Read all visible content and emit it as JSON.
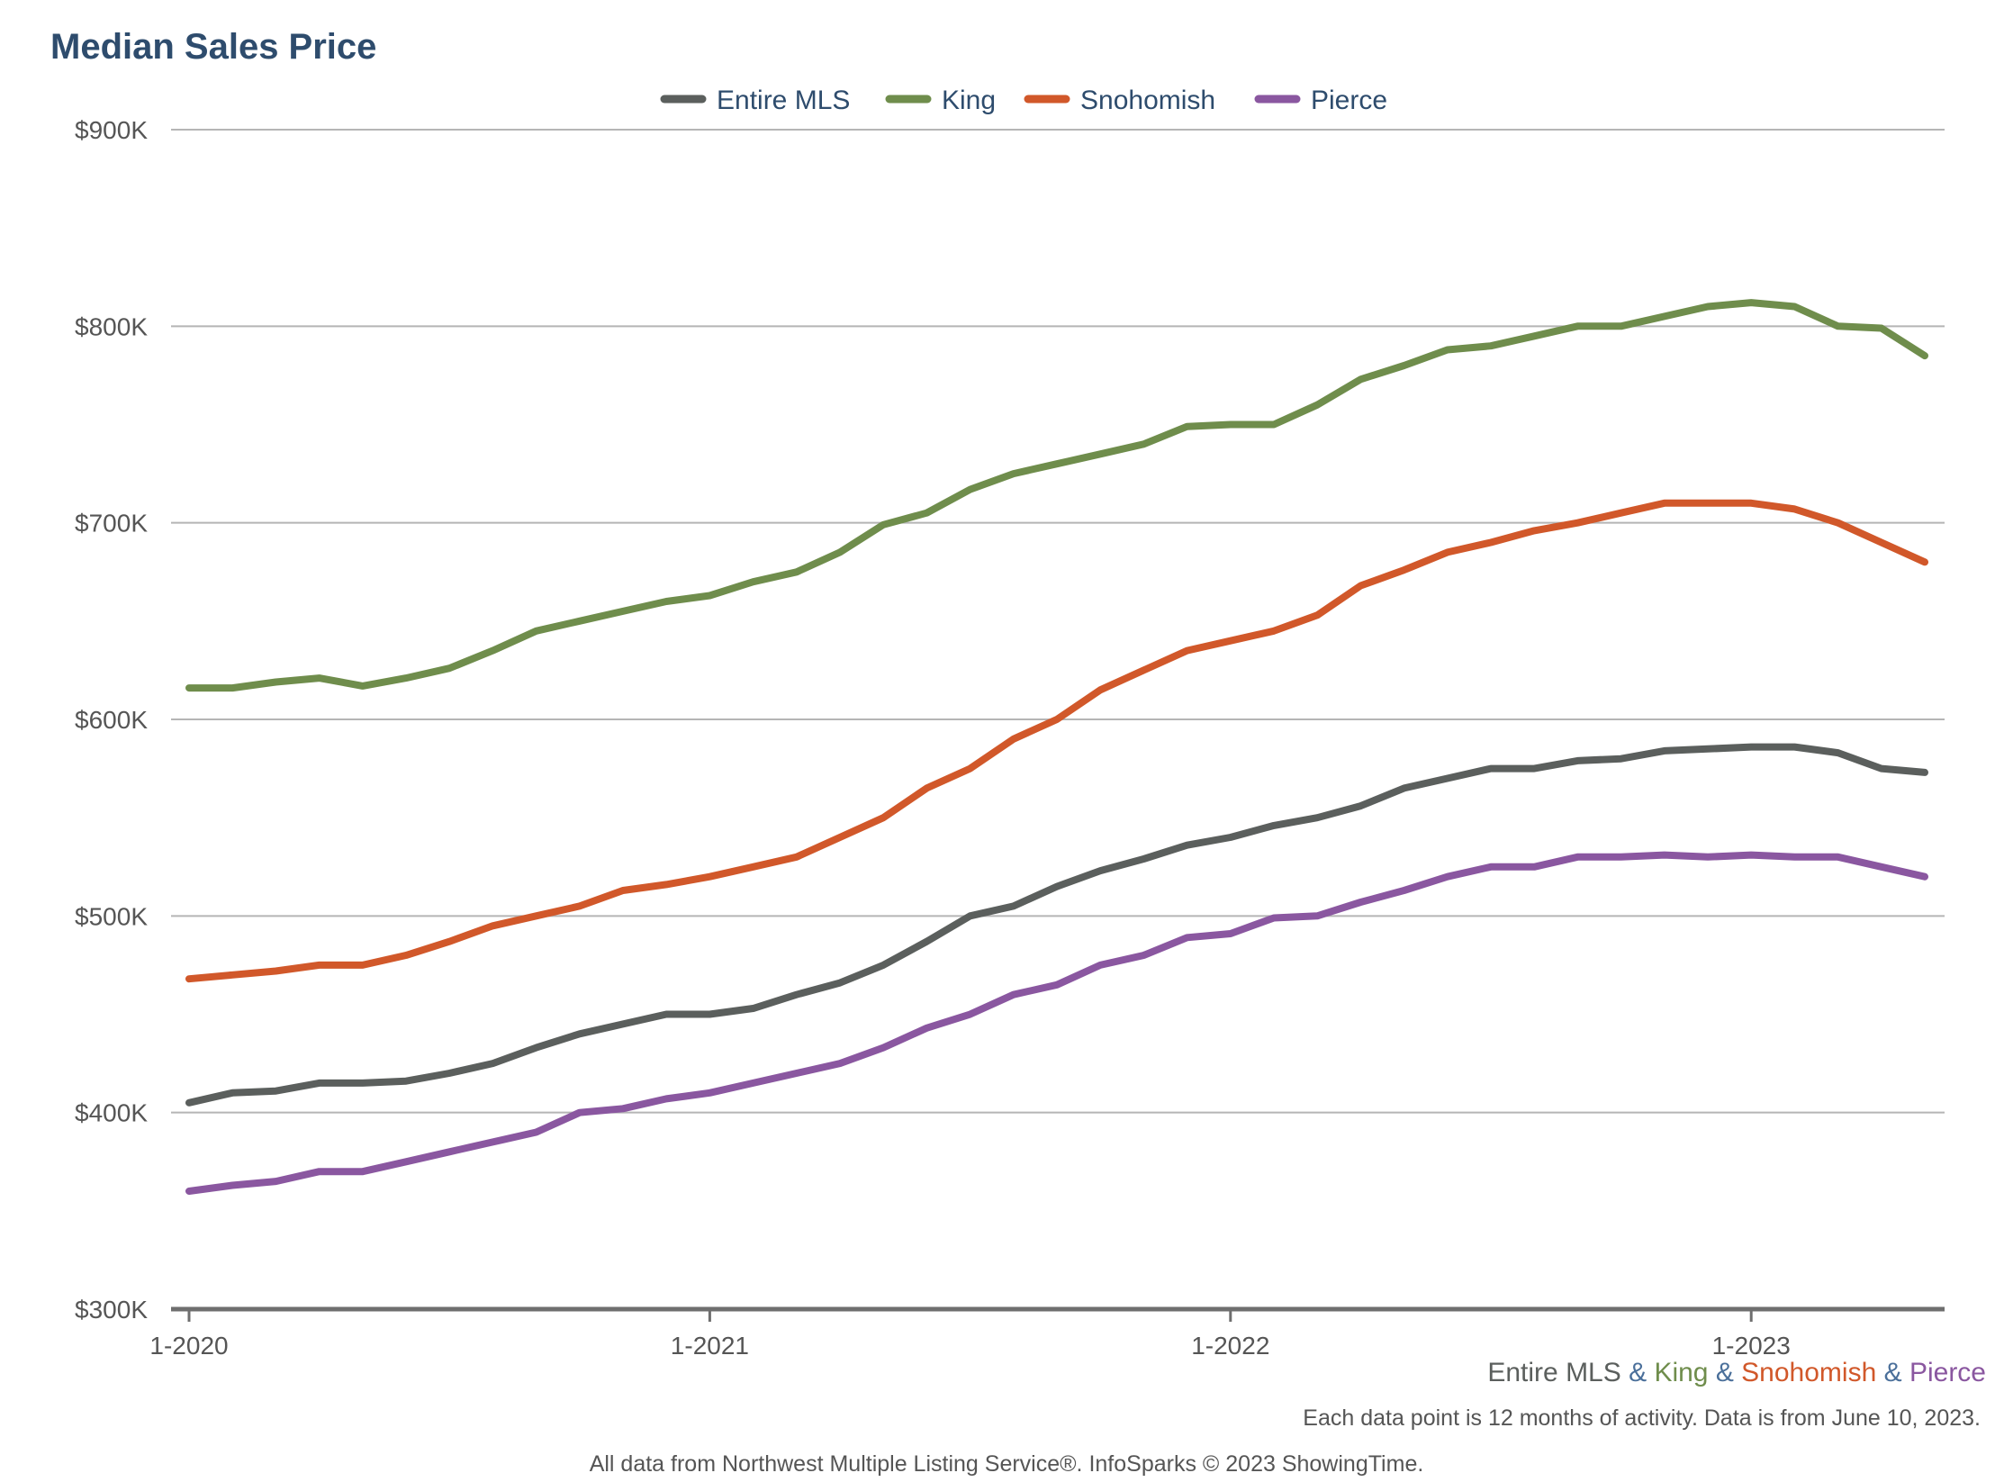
{
  "chart_data": {
    "type": "line",
    "title": "Median Sales Price",
    "xlabel": "",
    "ylabel": "",
    "ylim": [
      300000,
      900000
    ],
    "y_ticks": [
      {
        "value": 300000,
        "label": "$300K"
      },
      {
        "value": 400000,
        "label": "$400K"
      },
      {
        "value": 500000,
        "label": "$500K"
      },
      {
        "value": 600000,
        "label": "$600K"
      },
      {
        "value": 700000,
        "label": "$700K"
      },
      {
        "value": 800000,
        "label": "$800K"
      },
      {
        "value": 900000,
        "label": "$900K"
      }
    ],
    "x_ticks": [
      {
        "index": 0,
        "label": "1-2020"
      },
      {
        "index": 12,
        "label": "1-2021"
      },
      {
        "index": 24,
        "label": "1-2022"
      },
      {
        "index": 36,
        "label": "1-2023"
      }
    ],
    "x_count": 41,
    "x": [
      "1-2020",
      "2-2020",
      "3-2020",
      "4-2020",
      "5-2020",
      "6-2020",
      "7-2020",
      "8-2020",
      "9-2020",
      "10-2020",
      "11-2020",
      "12-2020",
      "1-2021",
      "2-2021",
      "3-2021",
      "4-2021",
      "5-2021",
      "6-2021",
      "7-2021",
      "8-2021",
      "9-2021",
      "10-2021",
      "11-2021",
      "12-2021",
      "1-2022",
      "2-2022",
      "3-2022",
      "4-2022",
      "5-2022",
      "6-2022",
      "7-2022",
      "8-2022",
      "9-2022",
      "10-2022",
      "11-2022",
      "12-2022",
      "1-2023",
      "2-2023",
      "3-2023",
      "4-2023",
      "5-2023"
    ],
    "grid": true,
    "legend_position": "top-center",
    "series": [
      {
        "name": "Entire MLS",
        "color": "#5b5f5d",
        "values": [
          405000,
          410000,
          411000,
          415000,
          415000,
          416000,
          420000,
          425000,
          433000,
          440000,
          445000,
          450000,
          450000,
          453000,
          460000,
          466000,
          475000,
          487000,
          500000,
          505000,
          515000,
          523000,
          529000,
          536000,
          540000,
          546000,
          550000,
          556000,
          565000,
          570000,
          575000,
          575000,
          579000,
          580000,
          584000,
          585000,
          586000,
          586000,
          583000,
          575000,
          573000
        ]
      },
      {
        "name": "King",
        "color": "#6f8d4c",
        "values": [
          616000,
          616000,
          619000,
          621000,
          617000,
          621000,
          626000,
          635000,
          645000,
          650000,
          655000,
          660000,
          663000,
          670000,
          675000,
          685000,
          699000,
          705000,
          717000,
          725000,
          730000,
          735000,
          740000,
          749000,
          750000,
          750000,
          760000,
          773000,
          780000,
          788000,
          790000,
          795000,
          800000,
          800000,
          805000,
          810000,
          812000,
          810000,
          800000,
          799000,
          785000
        ]
      },
      {
        "name": "Snohomish",
        "color": "#d1582a",
        "values": [
          468000,
          470000,
          472000,
          475000,
          475000,
          480000,
          487000,
          495000,
          500000,
          505000,
          513000,
          516000,
          520000,
          525000,
          530000,
          540000,
          550000,
          565000,
          575000,
          590000,
          600000,
          615000,
          625000,
          635000,
          640000,
          645000,
          653000,
          668000,
          676000,
          685000,
          690000,
          696000,
          700000,
          705000,
          710000,
          710000,
          710000,
          707000,
          700000,
          690000,
          680000
        ]
      },
      {
        "name": "Pierce",
        "color": "#8a57a0",
        "values": [
          360000,
          363000,
          365000,
          370000,
          370000,
          375000,
          380000,
          385000,
          390000,
          400000,
          402000,
          407000,
          410000,
          415000,
          420000,
          425000,
          433000,
          443000,
          450000,
          460000,
          465000,
          475000,
          480000,
          489000,
          491000,
          499000,
          500000,
          507000,
          513000,
          520000,
          525000,
          525000,
          530000,
          530000,
          531000,
          530000,
          531000,
          530000,
          530000,
          525000,
          520000
        ]
      }
    ]
  },
  "footer": {
    "series_line": [
      {
        "text": "Entire MLS",
        "color": "#5b5f5d"
      },
      {
        "text": " & ",
        "color": "#4a6f9a"
      },
      {
        "text": "King",
        "color": "#6f8d4c"
      },
      {
        "text": " & ",
        "color": "#4a6f9a"
      },
      {
        "text": "Snohomish",
        "color": "#d1582a"
      },
      {
        "text": " & ",
        "color": "#4a6f9a"
      },
      {
        "text": "Pierce",
        "color": "#8a57a0"
      }
    ],
    "note": "Each data point is 12 months of activity. Data is from June 10, 2023.",
    "source": "All data from Northwest Multiple Listing Service®. InfoSparks © 2023 ShowingTime."
  }
}
